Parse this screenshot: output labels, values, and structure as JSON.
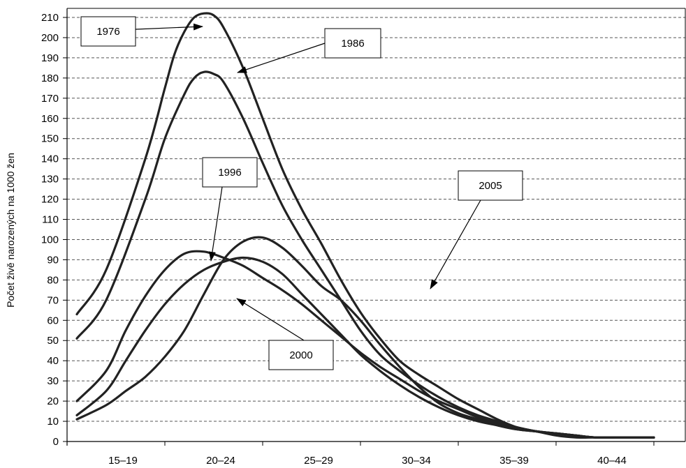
{
  "chart_data": {
    "type": "line",
    "ylabel": "Počet živě narozených na 1000 žen",
    "xlabel": "",
    "ylim": [
      0,
      215
    ],
    "yticks": [
      0,
      10,
      20,
      30,
      40,
      50,
      60,
      70,
      80,
      90,
      100,
      110,
      120,
      130,
      140,
      150,
      160,
      170,
      180,
      190,
      200,
      210
    ],
    "categories": [
      "15–19",
      "20–24",
      "25–29",
      "30–34",
      "35–39",
      "40–44"
    ],
    "grid": "horizontal dashed",
    "x_age_range": [
      15,
      46
    ],
    "series": [
      {
        "name": "1976",
        "color": "#222222",
        "x": [
          15.5,
          17,
          19,
          20,
          20.5,
          21,
          21.5,
          22,
          22.5,
          23,
          24,
          25,
          26,
          27,
          28,
          29,
          30,
          31,
          32,
          33,
          34,
          35,
          36,
          37,
          38,
          39,
          40,
          41,
          42,
          43,
          44,
          45
        ],
        "y": [
          63,
          85,
          140,
          175,
          192,
          203,
          210,
          212,
          211,
          205,
          185,
          160,
          135,
          115,
          98,
          80,
          64,
          51,
          40,
          33,
          27,
          21,
          16,
          11,
          7,
          5,
          3,
          2,
          2,
          2,
          2,
          2
        ]
      },
      {
        "name": "1986",
        "color": "#222222",
        "x": [
          15.5,
          17,
          19,
          20,
          21,
          21.5,
          22,
          22.5,
          23,
          24,
          25,
          26,
          27,
          28,
          29,
          30,
          31,
          32,
          33,
          34,
          35,
          36,
          37,
          38,
          39,
          40,
          41,
          42,
          43,
          44,
          45
        ],
        "y": [
          51,
          70,
          120,
          150,
          172,
          180,
          183,
          182,
          178,
          160,
          138,
          117,
          100,
          85,
          70,
          55,
          43,
          35,
          28,
          22,
          17,
          13,
          10,
          7,
          5,
          4,
          3,
          2,
          2,
          2,
          2
        ]
      },
      {
        "name": "1996",
        "color": "#222222",
        "x": [
          15.5,
          17,
          18,
          19,
          20,
          21,
          22,
          23,
          24,
          25,
          26,
          27,
          28,
          29,
          30,
          31,
          32,
          33,
          34,
          35,
          36,
          37,
          38,
          39,
          40,
          41,
          42,
          43,
          44,
          45
        ],
        "y": [
          20,
          35,
          55,
          72,
          85,
          93,
          94,
          91,
          87,
          81,
          75,
          68,
          60,
          52,
          44,
          37,
          31,
          25,
          20,
          16,
          12,
          9,
          7,
          5,
          4,
          3,
          2,
          2,
          2,
          2
        ]
      },
      {
        "name": "2000",
        "color": "#222222",
        "x": [
          15.5,
          17,
          18,
          19,
          20,
          21,
          22,
          23,
          24,
          25,
          26,
          27,
          28,
          29,
          30,
          31,
          32,
          33,
          34,
          35,
          36,
          37,
          38,
          39,
          40,
          41,
          42,
          43,
          44,
          45
        ],
        "y": [
          13,
          25,
          40,
          55,
          68,
          78,
          85,
          89,
          91,
          89,
          83,
          73,
          63,
          53,
          43,
          35,
          28,
          22,
          17,
          13,
          10,
          8,
          6,
          5,
          4,
          3,
          2,
          2,
          2,
          2
        ]
      },
      {
        "name": "2005",
        "color": "#222222",
        "x": [
          15.5,
          17,
          18,
          19,
          20,
          21,
          22,
          23,
          24,
          25,
          26,
          27,
          28,
          29,
          30,
          31,
          32,
          33,
          34,
          35,
          36,
          37,
          38,
          39,
          40,
          41,
          42,
          43,
          44,
          45
        ],
        "y": [
          11,
          18,
          25,
          32,
          42,
          55,
          73,
          90,
          99,
          101,
          96,
          87,
          77,
          70,
          60,
          48,
          37,
          27,
          19,
          14,
          11,
          8,
          6,
          5,
          4,
          3,
          2,
          2,
          2,
          2
        ]
      }
    ]
  },
  "callouts": [
    {
      "label": "1976",
      "series": "1976"
    },
    {
      "label": "1986",
      "series": "1986"
    },
    {
      "label": "1996",
      "series": "1996"
    },
    {
      "label": "2000",
      "series": "2000"
    },
    {
      "label": "2005",
      "series": "2005"
    }
  ]
}
